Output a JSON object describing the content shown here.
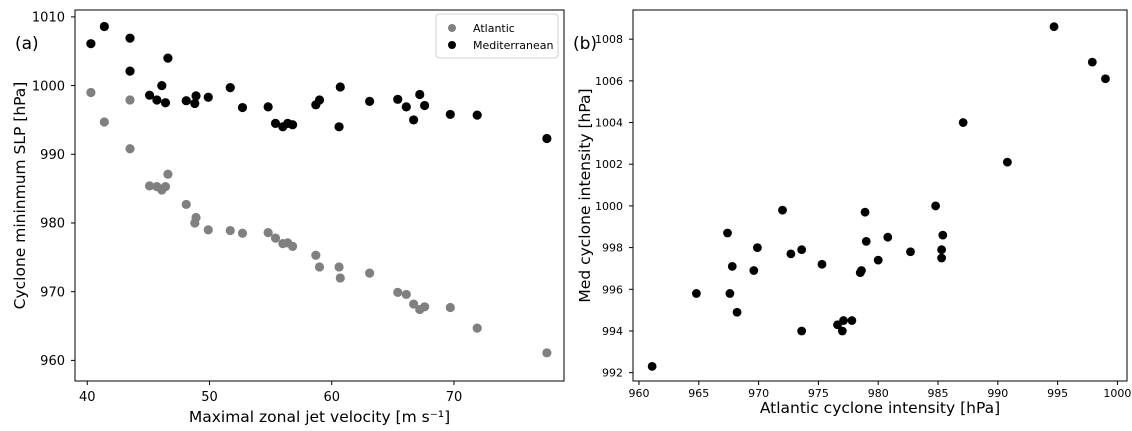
{
  "chart_data": [
    {
      "type": "scatter",
      "panel_label": "(a)",
      "xlabel": "Maximal zonal jet velocity [m s⁻¹]",
      "ylabel": "Cyclone mininmum SLP [hPa]",
      "xlim": [
        39,
        79
      ],
      "ylim": [
        957,
        1011
      ],
      "xticks": [
        40,
        50,
        60,
        70
      ],
      "yticks": [
        960,
        970,
        980,
        990,
        1000,
        1010
      ],
      "legend_position": "top-right",
      "series": [
        {
          "name": "Atlantic",
          "color": "#808080",
          "points": [
            [
              40.3,
              999.0
            ],
            [
              41.4,
              994.7
            ],
            [
              43.5,
              997.9
            ],
            [
              43.5,
              990.8
            ],
            [
              45.1,
              985.4
            ],
            [
              45.7,
              985.3
            ],
            [
              46.1,
              984.8
            ],
            [
              46.4,
              985.3
            ],
            [
              46.6,
              987.1
            ],
            [
              48.1,
              982.7
            ],
            [
              48.8,
              980.0
            ],
            [
              48.9,
              980.8
            ],
            [
              49.9,
              979.0
            ],
            [
              51.7,
              978.9
            ],
            [
              52.7,
              978.5
            ],
            [
              54.8,
              978.6
            ],
            [
              55.4,
              977.8
            ],
            [
              56.0,
              977.0
            ],
            [
              56.4,
              977.1
            ],
            [
              56.8,
              976.6
            ],
            [
              58.7,
              975.3
            ],
            [
              59.0,
              973.6
            ],
            [
              60.6,
              973.6
            ],
            [
              60.7,
              972.0
            ],
            [
              63.1,
              972.7
            ],
            [
              65.4,
              969.9
            ],
            [
              66.1,
              969.6
            ],
            [
              66.7,
              968.2
            ],
            [
              67.2,
              967.4
            ],
            [
              67.6,
              967.8
            ],
            [
              69.7,
              967.7
            ],
            [
              71.9,
              964.7
            ],
            [
              77.6,
              961.1
            ]
          ]
        },
        {
          "name": "Mediterranean",
          "color": "#000000",
          "points": [
            [
              40.3,
              1006.1
            ],
            [
              41.4,
              1008.6
            ],
            [
              43.5,
              1006.9
            ],
            [
              43.5,
              1002.1
            ],
            [
              45.1,
              998.6
            ],
            [
              45.7,
              997.9
            ],
            [
              46.1,
              1000.0
            ],
            [
              46.4,
              997.5
            ],
            [
              46.6,
              1004.0
            ],
            [
              48.1,
              997.8
            ],
            [
              48.8,
              997.4
            ],
            [
              48.9,
              998.5
            ],
            [
              49.9,
              998.3
            ],
            [
              51.7,
              999.7
            ],
            [
              52.7,
              996.8
            ],
            [
              54.8,
              996.9
            ],
            [
              55.4,
              994.5
            ],
            [
              56.0,
              994.0
            ],
            [
              56.4,
              994.5
            ],
            [
              56.8,
              994.3
            ],
            [
              58.7,
              997.2
            ],
            [
              59.0,
              997.9
            ],
            [
              60.6,
              994.0
            ],
            [
              60.7,
              999.8
            ],
            [
              63.1,
              997.7
            ],
            [
              65.4,
              998.0
            ],
            [
              66.1,
              996.9
            ],
            [
              66.7,
              995.0
            ],
            [
              67.2,
              998.7
            ],
            [
              67.6,
              997.1
            ],
            [
              69.7,
              995.8
            ],
            [
              71.9,
              995.7
            ],
            [
              77.6,
              992.3
            ]
          ]
        }
      ]
    },
    {
      "type": "scatter",
      "panel_label": "(b)",
      "xlabel": "Atlantic cyclone intensity [hPa]",
      "ylabel": "Med cyclone intensity [hPa]",
      "xlim": [
        959.5,
        1000.8
      ],
      "ylim": [
        991.6,
        1009.4
      ],
      "xticks": [
        960,
        965,
        970,
        975,
        980,
        985,
        990,
        995,
        1000
      ],
      "yticks": [
        992,
        994,
        996,
        998,
        1000,
        1002,
        1004,
        1006,
        1008
      ],
      "series": [
        {
          "name": "",
          "color": "#000000",
          "points": [
            [
              961.1,
              992.3
            ],
            [
              964.8,
              995.8
            ],
            [
              967.4,
              998.7
            ],
            [
              967.6,
              995.8
            ],
            [
              967.8,
              997.1
            ],
            [
              968.2,
              994.9
            ],
            [
              969.6,
              996.9
            ],
            [
              969.9,
              998.0
            ],
            [
              972.0,
              999.8
            ],
            [
              972.7,
              997.7
            ],
            [
              973.6,
              994.0
            ],
            [
              973.6,
              997.9
            ],
            [
              975.3,
              997.2
            ],
            [
              976.6,
              994.3
            ],
            [
              977.0,
              994.0
            ],
            [
              977.1,
              994.5
            ],
            [
              977.8,
              994.5
            ],
            [
              978.5,
              996.8
            ],
            [
              978.6,
              996.9
            ],
            [
              978.9,
              999.7
            ],
            [
              979.0,
              998.3
            ],
            [
              980.0,
              997.4
            ],
            [
              980.8,
              998.5
            ],
            [
              982.7,
              997.8
            ],
            [
              984.8,
              1000.0
            ],
            [
              985.3,
              997.5
            ],
            [
              985.3,
              997.9
            ],
            [
              985.4,
              998.6
            ],
            [
              987.1,
              1004.0
            ],
            [
              990.8,
              1002.1
            ],
            [
              994.7,
              1008.6
            ],
            [
              997.9,
              1006.9
            ],
            [
              999.0,
              1006.1
            ]
          ]
        }
      ]
    }
  ]
}
